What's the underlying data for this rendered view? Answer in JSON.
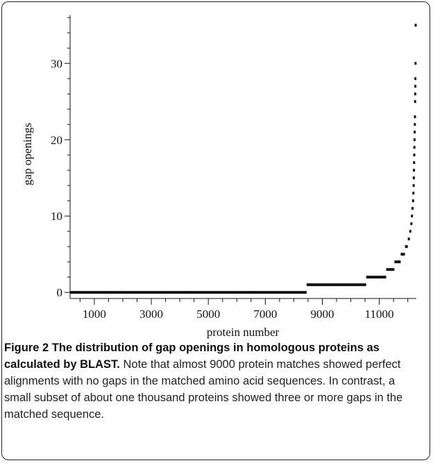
{
  "chart_data": {
    "type": "step",
    "xlabel": "protein number",
    "ylabel": "gap openings",
    "x": [
      150,
      8450,
      10540,
      11240,
      11530,
      11750,
      11900,
      12000,
      12050,
      12090,
      12110,
      12130,
      12150,
      12160,
      12170,
      12175,
      12180,
      12185,
      12190,
      12195,
      12200,
      12205,
      12210,
      12215,
      12220,
      12225,
      12228,
      12230,
      12235,
      12240
    ],
    "values": [
      0,
      1,
      2,
      3,
      4,
      5,
      6,
      7,
      8,
      9,
      10,
      11,
      12,
      13,
      14,
      15,
      16,
      17,
      18,
      19,
      20,
      21,
      22,
      23,
      25,
      26,
      27,
      28,
      30,
      35
    ],
    "color": "#111111",
    "xlim": [
      150,
      12300
    ],
    "ylim": [
      -0.8,
      36.3
    ],
    "xticks": [
      1000,
      3000,
      5000,
      7000,
      9000,
      11000
    ],
    "minor_xticks": [
      500,
      1500,
      2000,
      2500,
      3500,
      4000,
      4500,
      5500,
      6000,
      6500,
      7500,
      8000,
      8500,
      9500,
      10000,
      10500,
      11500,
      12000
    ],
    "yticks": [
      0,
      10,
      20,
      30
    ],
    "minor_yticks": [
      2,
      4,
      6,
      8,
      12,
      14,
      16,
      18,
      22,
      24,
      26,
      28,
      32,
      34,
      36
    ]
  },
  "caption": {
    "title": "Figure 2 The distribution of gap openings in homologous proteins as calculated by BLAST.",
    "text": "Note that almost 9000 protein matches showed perfect alignments with no gaps in the matched amino acid sequences. In contrast, a small subset of about one thousand proteins showed three or more gaps in the matched sequence."
  }
}
